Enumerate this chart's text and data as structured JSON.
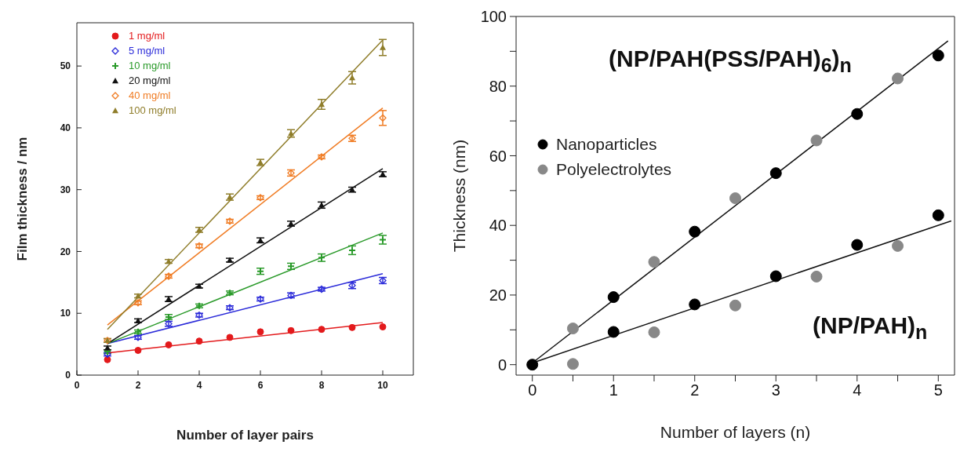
{
  "chart_data": [
    {
      "type": "scatter",
      "xlabel": "Number of layer pairs",
      "ylabel": "Film thickness / nm",
      "xlim": [
        0,
        11
      ],
      "ylim": [
        0,
        57
      ],
      "xticks": [
        0,
        2,
        4,
        6,
        8,
        10
      ],
      "yticks": [
        0,
        10,
        20,
        30,
        40,
        50
      ],
      "legend": "top left",
      "grid": false,
      "x": [
        1,
        2,
        3,
        4,
        5,
        6,
        7,
        8,
        9,
        10
      ],
      "series": [
        {
          "name": "1 mg/ml",
          "color": "#e31a1c",
          "marker": "circle",
          "values": [
            2.5,
            4.0,
            4.9,
            5.5,
            6.1,
            7.0,
            7.2,
            7.4,
            7.7,
            7.8
          ]
        },
        {
          "name": "5 mg/ml",
          "color": "#2b2bd9",
          "marker": "diamond",
          "values": [
            3.4,
            6.1,
            8.3,
            9.7,
            10.9,
            12.3,
            12.9,
            13.9,
            14.5,
            15.3
          ],
          "errors": [
            0.3,
            0.3,
            0.4,
            0.3,
            0.3,
            0.3,
            0.4,
            0.3,
            0.5,
            0.5
          ]
        },
        {
          "name": "10 mg/ml",
          "color": "#2a9a2a",
          "marker": "cross",
          "values": [
            3.8,
            7.0,
            9.4,
            11.2,
            13.3,
            16.8,
            17.6,
            19.0,
            20.2,
            21.9
          ],
          "errors": [
            0.3,
            0.3,
            0.4,
            0.3,
            0.3,
            0.5,
            0.5,
            0.6,
            0.7,
            0.7
          ]
        },
        {
          "name": "20 mg/ml",
          "color": "#111111",
          "marker": "triangle",
          "values": [
            4.4,
            8.8,
            12.3,
            14.4,
            18.6,
            21.8,
            24.5,
            27.5,
            30.0,
            32.5
          ],
          "errors": [
            0.3,
            0.3,
            0.4,
            0.3,
            0.3,
            0.4,
            0.4,
            0.5,
            0.4,
            0.4
          ]
        },
        {
          "name": "40 mg/ml",
          "color": "#f07c24",
          "marker": "diamond",
          "values": [
            5.6,
            11.7,
            16.0,
            20.9,
            24.9,
            28.7,
            32.7,
            35.3,
            38.3,
            41.6
          ],
          "errors": [
            0.3,
            0.3,
            0.3,
            0.3,
            0.3,
            0.3,
            0.5,
            0.3,
            0.5,
            1.2
          ]
        },
        {
          "name": "100 mg/ml",
          "color": "#8f7d2a",
          "marker": "triangle",
          "values": [
            5.6,
            12.8,
            18.4,
            23.5,
            28.8,
            34.4,
            39.1,
            43.8,
            48.1,
            53.0
          ],
          "errors": [
            0.3,
            0.3,
            0.3,
            0.4,
            0.5,
            0.5,
            0.6,
            0.8,
            1.0,
            1.3
          ]
        },
        {
          "type": "line",
          "color": "#e31a1c",
          "x": [
            1,
            10
          ],
          "values": [
            3.6,
            8.5
          ]
        },
        {
          "type": "line",
          "color": "#2b2bd9",
          "x": [
            1,
            10
          ],
          "values": [
            5.1,
            16.4
          ]
        },
        {
          "type": "line",
          "color": "#2a9a2a",
          "x": [
            1,
            10
          ],
          "values": [
            5.1,
            23.0
          ]
        },
        {
          "type": "line",
          "color": "#111111",
          "x": [
            1,
            10
          ],
          "values": [
            5.1,
            33.4
          ]
        },
        {
          "type": "line",
          "color": "#f07c24",
          "x": [
            1,
            10
          ],
          "values": [
            8.1,
            43.2
          ]
        },
        {
          "type": "line",
          "color": "#8f7d2a",
          "x": [
            1,
            10
          ],
          "values": [
            7.4,
            54.2
          ]
        }
      ]
    },
    {
      "type": "scatter",
      "xlabel": "Number of layers (n)",
      "ylabel": "Thickness (nm)",
      "xlim": [
        -0.2,
        5.2
      ],
      "ylim": [
        -3,
        100
      ],
      "xticks": [
        0,
        {
          "value": 0.5,
          "label": null
        },
        1,
        {
          "value": 1.5,
          "label": null
        },
        2,
        {
          "value": 2.5,
          "label": null
        },
        3,
        {
          "value": 3.5,
          "label": null
        },
        4,
        {
          "value": 4.5,
          "label": null
        },
        5
      ],
      "yticks": [
        0,
        {
          "value": 10,
          "label": null
        },
        20,
        {
          "value": 30,
          "label": null
        },
        40,
        {
          "value": 50,
          "label": null
        },
        60,
        {
          "value": 70,
          "label": null
        },
        80,
        {
          "value": 90,
          "label": null
        },
        100
      ],
      "legend": "left",
      "grid": false,
      "annotations": [
        "(NP/PAH(PSS/PAH)$_{6}$)$_{n}$",
        "(NP/PAH)$_{n}$"
      ],
      "series": [
        {
          "name": "Nanoparticles",
          "color": "#000000",
          "marker": "circle",
          "x": [
            0,
            1,
            1,
            2,
            2,
            3,
            3,
            4,
            4,
            5,
            5
          ],
          "values": [
            0,
            19.4,
            9.4,
            38.2,
            17.3,
            55.0,
            25.4,
            72.0,
            34.4,
            88.8,
            42.9
          ]
        },
        {
          "name": "Polyelectrolytes",
          "color": "#888888",
          "marker": "circle",
          "x": [
            0.5,
            0.5,
            1.5,
            1.5,
            2.5,
            2.5,
            3.5,
            3.5,
            4.5,
            4.5
          ],
          "values": [
            10.4,
            0.2,
            29.5,
            9.3,
            47.8,
            17.0,
            64.4,
            25.3,
            82.2,
            34.1
          ]
        },
        {
          "type": "line",
          "color": "#111111",
          "x": [
            0,
            5.12
          ],
          "values": [
            0.5,
            93.0
          ]
        },
        {
          "type": "line",
          "color": "#111111",
          "x": [
            0,
            5.16
          ],
          "values": [
            0.5,
            41.3
          ]
        }
      ]
    }
  ]
}
